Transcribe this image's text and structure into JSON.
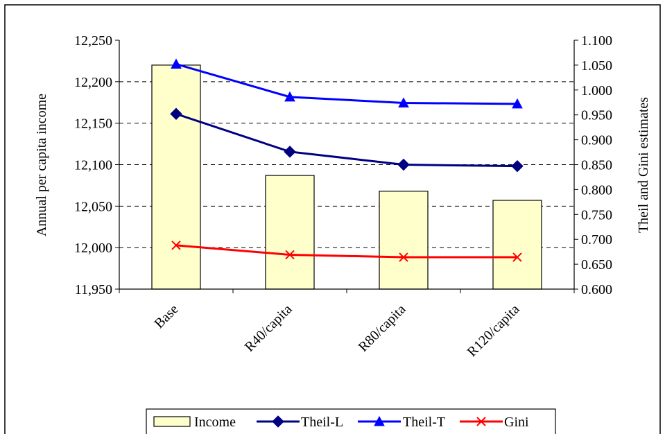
{
  "chart_data": {
    "type": "bar",
    "categories": [
      "Base",
      "R40/capita",
      "R80/capita",
      "R120/capita"
    ],
    "bar_series": {
      "name": "Income",
      "values": [
        12220,
        12087,
        12068,
        12057
      ],
      "color": "#ffffcc",
      "axis": "left"
    },
    "line_series": [
      {
        "name": "Theil-L",
        "values": [
          0.952,
          0.876,
          0.85,
          0.847
        ],
        "color": "#000080",
        "marker": "diamond",
        "axis": "right"
      },
      {
        "name": "Theil-T",
        "values": [
          1.052,
          0.986,
          0.974,
          0.972
        ],
        "color": "#0000ff",
        "marker": "triangle",
        "axis": "right"
      },
      {
        "name": "Gini",
        "values": [
          0.688,
          0.669,
          0.664,
          0.664
        ],
        "color": "#ff0000",
        "marker": "x",
        "axis": "right"
      }
    ],
    "ylabel": "Annual per capita income",
    "y2label": "Theil and Gini estimates",
    "ylim": [
      11950,
      12250
    ],
    "y2lim": [
      0.6,
      1.1
    ],
    "yticks": [
      "11,950",
      "12,000",
      "12,050",
      "12,100",
      "12,150",
      "12,200",
      "12,250"
    ],
    "y2ticks": [
      "0.600",
      "0.650",
      "0.700",
      "0.750",
      "0.800",
      "0.850",
      "0.900",
      "0.950",
      "1.000",
      "1.050",
      "1.100"
    ],
    "grid": "horizontal-dashed",
    "legend_position": "bottom",
    "legend": [
      "Income",
      "Theil-L",
      "Theil-T",
      "Gini"
    ]
  }
}
